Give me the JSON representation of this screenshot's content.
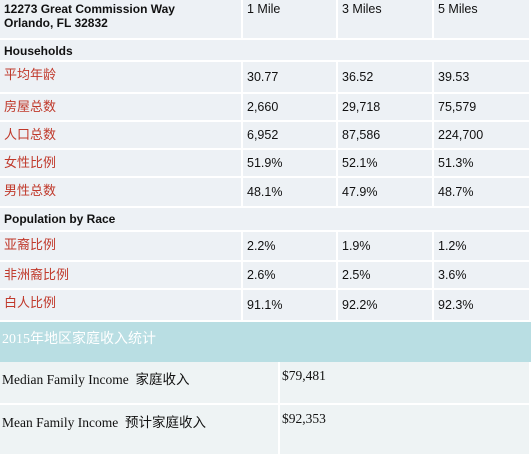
{
  "table": {
    "address": [
      "12273 Great Commission Way",
      "Orlando, FL 32832"
    ],
    "columns": [
      "1 Mile",
      "3 Miles",
      "5 Miles"
    ],
    "groups": [
      {
        "title": "Households",
        "rows": [
          {
            "label": "平均年龄",
            "values": [
              "30.77",
              "36.52",
              "39.53"
            ]
          },
          {
            "label": "房屋总数",
            "values": [
              "2,660",
              "29,718",
              "75,579"
            ]
          },
          {
            "label": "人口总数",
            "values": [
              "6,952",
              "87,586",
              "224,700"
            ]
          },
          {
            "label": "女性比例",
            "values": [
              "51.9%",
              "52.1%",
              "51.3%"
            ]
          },
          {
            "label": "男性总数",
            "values": [
              "48.1%",
              "47.9%",
              "48.7%"
            ]
          }
        ]
      },
      {
        "title": "Population by Race",
        "rows": [
          {
            "label": "亚裔比例",
            "values": [
              "2.2%",
              "1.9%",
              "1.2%"
            ]
          },
          {
            "label": "非洲裔比例",
            "values": [
              "2.6%",
              "2.5%",
              "3.6%"
            ]
          },
          {
            "label": "白人比例",
            "values": [
              "91.1%",
              "92.2%",
              "92.3%"
            ]
          }
        ]
      }
    ]
  },
  "income": {
    "title": "2015年地区家庭收入统计",
    "rows": [
      {
        "label": "Median Family Income  家庭收入",
        "value": "$79,481"
      },
      {
        "label": "Mean Family Income  预计家庭收入",
        "value": "$92,353"
      }
    ]
  }
}
